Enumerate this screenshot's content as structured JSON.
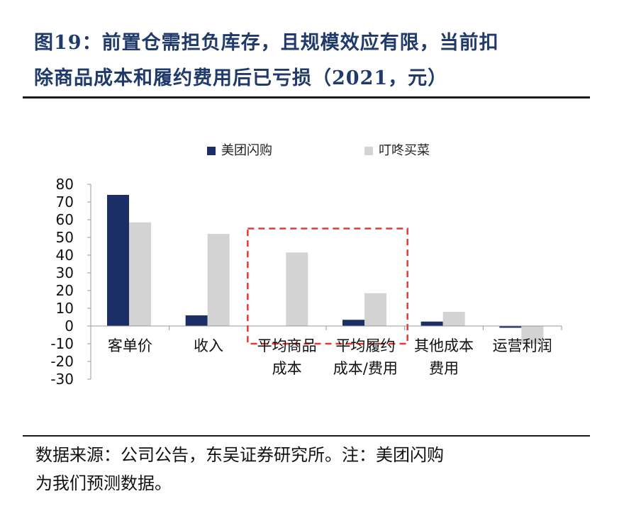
{
  "figure": {
    "title_line1": "图19：前置仓需担负库存，且规模效应有限，当前扣",
    "title_line2": "除商品成本和履约费用后已亏损（2021，元）",
    "source_line1": "数据来源：公司公告，东吴证券研究所。注：美团闪购",
    "source_line2": "为我们预测数据。"
  },
  "chart_data": {
    "type": "bar",
    "categories": [
      {
        "lines": [
          "客单价"
        ]
      },
      {
        "lines": [
          "收入"
        ]
      },
      {
        "lines": [
          "平均商品",
          "成本"
        ]
      },
      {
        "lines": [
          "平均履约",
          "成本/费用"
        ]
      },
      {
        "lines": [
          "其他成本",
          "费用"
        ]
      },
      {
        "lines": [
          "运营利润"
        ]
      }
    ],
    "series": [
      {
        "name": "美团闪购",
        "color": "#1b2f66",
        "values": [
          74,
          6,
          0,
          3.5,
          2.5,
          -1
        ]
      },
      {
        "name": "叮咚买菜",
        "color": "#d3d3d3",
        "values": [
          58.5,
          52,
          41.5,
          18.5,
          8,
          -10
        ]
      }
    ],
    "yticks": [
      "80",
      "70",
      "60",
      "50",
      "40",
      "30",
      "20",
      "10",
      "0",
      "-10",
      "-20",
      "-30"
    ],
    "ylim": [
      -30,
      80
    ],
    "legend_position": "top",
    "highlight": {
      "categories": [
        2,
        3
      ],
      "style": "red-dashed-box"
    }
  }
}
